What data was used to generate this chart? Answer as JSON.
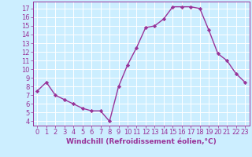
{
  "x": [
    0,
    1,
    2,
    3,
    4,
    5,
    6,
    7,
    8,
    9,
    10,
    11,
    12,
    13,
    14,
    15,
    16,
    17,
    18,
    19,
    20,
    21,
    22,
    23
  ],
  "y": [
    7.5,
    8.5,
    7.0,
    6.5,
    6.0,
    5.5,
    5.2,
    5.2,
    4.0,
    8.0,
    10.5,
    12.5,
    14.8,
    15.0,
    15.8,
    17.2,
    17.2,
    17.2,
    17.0,
    14.5,
    11.8,
    11.0,
    9.5,
    8.5
  ],
  "line_color": "#993399",
  "marker": "D",
  "marker_size": 2.2,
  "line_width": 1.0,
  "bg_color": "#cceeff",
  "grid_color": "#ffffff",
  "xlabel": "Windchill (Refroidissement éolien,°C)",
  "ylabel_ticks": [
    4,
    5,
    6,
    7,
    8,
    9,
    10,
    11,
    12,
    13,
    14,
    15,
    16,
    17
  ],
  "xlim": [
    -0.5,
    23.5
  ],
  "ylim": [
    3.5,
    17.8
  ],
  "xlabel_fontsize": 6.5,
  "tick_fontsize": 6.0,
  "tick_color": "#993399",
  "label_color": "#993399"
}
